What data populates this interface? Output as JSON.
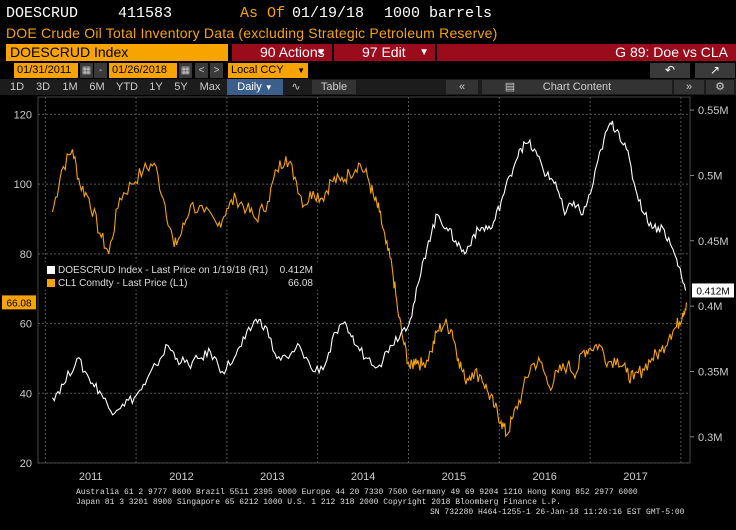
{
  "header": {
    "ticker": "DOESCRUD",
    "value": "411583",
    "as_of_label": "As Of",
    "as_of_date": "01/19/18",
    "units": "1000 barrels",
    "subtitle": "DOE Crude Oil Total Inventory Data (excluding Strategic Petroleum Reserve)"
  },
  "toolbar": {
    "security": "DOESCRUD Index",
    "actions_label": "90 Actions",
    "edit_label": "97 Edit",
    "graph_label": "G 89: Doe vs CLA",
    "start_date": "01/31/2011",
    "end_date": "01/26/2018",
    "currency": "Local CCY",
    "back_icon": "undo-arrow-icon",
    "share_icon": "export-icon"
  },
  "tabs": {
    "periods": [
      "1D",
      "3D",
      "1M",
      "6M",
      "YTD",
      "1Y",
      "5Y",
      "Max"
    ],
    "frequency": "Daily",
    "table_label": "Table",
    "chart_content_label": "Chart Content",
    "collapse_icon": "double-chevron-left-icon",
    "expand_icon": "double-chevron-right-icon",
    "settings_icon": "gear-icon"
  },
  "chart_data": {
    "type": "line",
    "xaxis": {
      "labels": [
        "2011",
        "2012",
        "2013",
        "2014",
        "2015",
        "2016",
        "2017"
      ]
    },
    "left_axis": {
      "ticks": [
        "20",
        "40",
        "60",
        "80",
        "100",
        "120"
      ],
      "range": [
        20,
        125
      ]
    },
    "right_axis": {
      "ticks": [
        "0.3M",
        "0.35M",
        "0.4M",
        "0.45M",
        "0.5M",
        "0.55M"
      ],
      "range": [
        0.28,
        0.56
      ]
    },
    "grid": true,
    "last_value_tags": {
      "left": "66.08",
      "right": "0.412M"
    },
    "legend": {
      "position": "middle-left",
      "entries": [
        {
          "label": "DOESCRUD Index - Last Price on 1/19/18 (R1)",
          "value": "0.412M",
          "color": "#ffffff"
        },
        {
          "label": "CL1 Comdty - Last Price (L1)",
          "value": "66.08",
          "color": "#f7a300"
        }
      ]
    },
    "series": [
      {
        "name": "CL1 Comdty - Last Price (L1)",
        "axis": "left",
        "color": "#f7a300",
        "points": [
          [
            2011.08,
            92
          ],
          [
            2011.18,
            104
          ],
          [
            2011.3,
            110
          ],
          [
            2011.38,
            100
          ],
          [
            2011.48,
            96
          ],
          [
            2011.6,
            86
          ],
          [
            2011.7,
            80
          ],
          [
            2011.82,
            96
          ],
          [
            2011.95,
            100
          ],
          [
            2012.08,
            104
          ],
          [
            2012.2,
            106
          ],
          [
            2012.32,
            94
          ],
          [
            2012.42,
            82
          ],
          [
            2012.5,
            86
          ],
          [
            2012.6,
            94
          ],
          [
            2012.75,
            92
          ],
          [
            2012.9,
            88
          ],
          [
            2013.0,
            93
          ],
          [
            2013.1,
            96
          ],
          [
            2013.22,
            93
          ],
          [
            2013.32,
            90
          ],
          [
            2013.45,
            95
          ],
          [
            2013.55,
            104
          ],
          [
            2013.65,
            108
          ],
          [
            2013.75,
            102
          ],
          [
            2013.85,
            94
          ],
          [
            2013.95,
            98
          ],
          [
            2014.05,
            96
          ],
          [
            2014.15,
            101
          ],
          [
            2014.25,
            101
          ],
          [
            2014.35,
            103
          ],
          [
            2014.45,
            106
          ],
          [
            2014.55,
            102
          ],
          [
            2014.62,
            96
          ],
          [
            2014.68,
            92
          ],
          [
            2014.75,
            83
          ],
          [
            2014.82,
            76
          ],
          [
            2014.88,
            64
          ],
          [
            2014.95,
            54
          ],
          [
            2015.02,
            47
          ],
          [
            2015.08,
            50
          ],
          [
            2015.15,
            48
          ],
          [
            2015.25,
            52
          ],
          [
            2015.32,
            58
          ],
          [
            2015.4,
            60
          ],
          [
            2015.48,
            58
          ],
          [
            2015.55,
            50
          ],
          [
            2015.62,
            44
          ],
          [
            2015.7,
            46
          ],
          [
            2015.8,
            45
          ],
          [
            2015.88,
            40
          ],
          [
            2015.95,
            36
          ],
          [
            2016.02,
            32
          ],
          [
            2016.08,
            28
          ],
          [
            2016.15,
            33
          ],
          [
            2016.25,
            40
          ],
          [
            2016.35,
            48
          ],
          [
            2016.45,
            49
          ],
          [
            2016.55,
            42
          ],
          [
            2016.65,
            46
          ],
          [
            2016.75,
            48
          ],
          [
            2016.85,
            46
          ],
          [
            2016.92,
            52
          ],
          [
            2017.0,
            53
          ],
          [
            2017.1,
            54
          ],
          [
            2017.2,
            49
          ],
          [
            2017.3,
            50
          ],
          [
            2017.4,
            46
          ],
          [
            2017.48,
            44
          ],
          [
            2017.58,
            47
          ],
          [
            2017.68,
            50
          ],
          [
            2017.78,
            52
          ],
          [
            2017.88,
            57
          ],
          [
            2017.95,
            59
          ],
          [
            2018.02,
            63
          ],
          [
            2018.06,
            66.08
          ]
        ]
      },
      {
        "name": "DOESCRUD Index - Last Price on 1/19/18 (R1)",
        "axis": "right",
        "color": "#ffffff",
        "points": [
          [
            2011.08,
            0.33
          ],
          [
            2011.2,
            0.34
          ],
          [
            2011.35,
            0.36
          ],
          [
            2011.48,
            0.345
          ],
          [
            2011.6,
            0.335
          ],
          [
            2011.72,
            0.32
          ],
          [
            2011.85,
            0.325
          ],
          [
            2011.98,
            0.33
          ],
          [
            2012.1,
            0.34
          ],
          [
            2012.22,
            0.355
          ],
          [
            2012.35,
            0.37
          ],
          [
            2012.45,
            0.36
          ],
          [
            2012.58,
            0.355
          ],
          [
            2012.7,
            0.36
          ],
          [
            2012.82,
            0.365
          ],
          [
            2012.95,
            0.35
          ],
          [
            2013.08,
            0.36
          ],
          [
            2013.2,
            0.375
          ],
          [
            2013.32,
            0.39
          ],
          [
            2013.42,
            0.385
          ],
          [
            2013.55,
            0.36
          ],
          [
            2013.68,
            0.36
          ],
          [
            2013.8,
            0.37
          ],
          [
            2013.95,
            0.35
          ],
          [
            2014.08,
            0.355
          ],
          [
            2014.2,
            0.38
          ],
          [
            2014.32,
            0.385
          ],
          [
            2014.42,
            0.37
          ],
          [
            2014.55,
            0.36
          ],
          [
            2014.68,
            0.355
          ],
          [
            2014.8,
            0.37
          ],
          [
            2014.92,
            0.38
          ],
          [
            2015.02,
            0.39
          ],
          [
            2015.12,
            0.42
          ],
          [
            2015.22,
            0.45
          ],
          [
            2015.32,
            0.47
          ],
          [
            2015.42,
            0.46
          ],
          [
            2015.52,
            0.45
          ],
          [
            2015.62,
            0.44
          ],
          [
            2015.72,
            0.455
          ],
          [
            2015.82,
            0.46
          ],
          [
            2015.92,
            0.46
          ],
          [
            2016.02,
            0.48
          ],
          [
            2016.12,
            0.5
          ],
          [
            2016.22,
            0.52
          ],
          [
            2016.32,
            0.525
          ],
          [
            2016.42,
            0.515
          ],
          [
            2016.52,
            0.5
          ],
          [
            2016.62,
            0.495
          ],
          [
            2016.72,
            0.47
          ],
          [
            2016.82,
            0.48
          ],
          [
            2016.92,
            0.47
          ],
          [
            2017.02,
            0.49
          ],
          [
            2017.12,
            0.52
          ],
          [
            2017.22,
            0.54
          ],
          [
            2017.3,
            0.535
          ],
          [
            2017.4,
            0.52
          ],
          [
            2017.5,
            0.49
          ],
          [
            2017.6,
            0.47
          ],
          [
            2017.7,
            0.46
          ],
          [
            2017.8,
            0.46
          ],
          [
            2017.9,
            0.445
          ],
          [
            2017.98,
            0.43
          ],
          [
            2018.05,
            0.412
          ]
        ]
      }
    ]
  },
  "footer": {
    "line1": "Australia 61 2 9777 8600 Brazil 5511 2395 9000 Europe 44 20 7330 7500 Germany 49 69 9204 1210 Hong Kong 852 2977 6000",
    "line2": "Japan 81 3 3201 8900        Singapore 65 6212 1000        U.S. 1 212 318 2000        Copyright 2018 Bloomberg Finance L.P.",
    "line3": "SN 732280 H464-1255-1 26-Jan-18 11:26:16 EST  GMT-5:00"
  }
}
